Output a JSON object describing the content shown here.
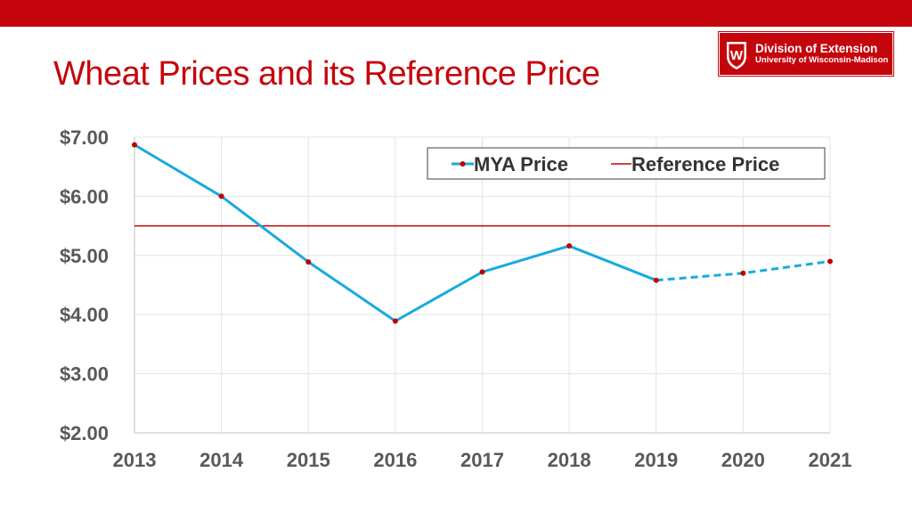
{
  "slide": {
    "title": "Wheat Prices and its Reference Price"
  },
  "logo": {
    "line1": "Division of Extension",
    "line2": "University of Wisconsin-Madison",
    "crest_letter": "W",
    "brand_color": "#c5050c"
  },
  "chart_data": {
    "type": "line",
    "x": [
      "2013",
      "2014",
      "2015",
      "2016",
      "2017",
      "2018",
      "2019",
      "2020",
      "2021"
    ],
    "series": [
      {
        "name": "MYA Price",
        "values": [
          6.87,
          6.0,
          4.89,
          3.89,
          4.72,
          5.16,
          4.58,
          4.7,
          4.9
        ],
        "color": "#1aa9e0",
        "marker_color": "#c00000",
        "dashed_from_index": 6
      },
      {
        "name": "Reference Price",
        "values": [
          5.5,
          5.5,
          5.5,
          5.5,
          5.5,
          5.5,
          5.5,
          5.5,
          5.5
        ],
        "color": "#c00000"
      }
    ],
    "yticks": [
      "$2.00",
      "$3.00",
      "$4.00",
      "$5.00",
      "$6.00",
      "$7.00"
    ],
    "ylim": [
      2,
      7
    ],
    "grid": true,
    "legend_position": "top-right"
  }
}
